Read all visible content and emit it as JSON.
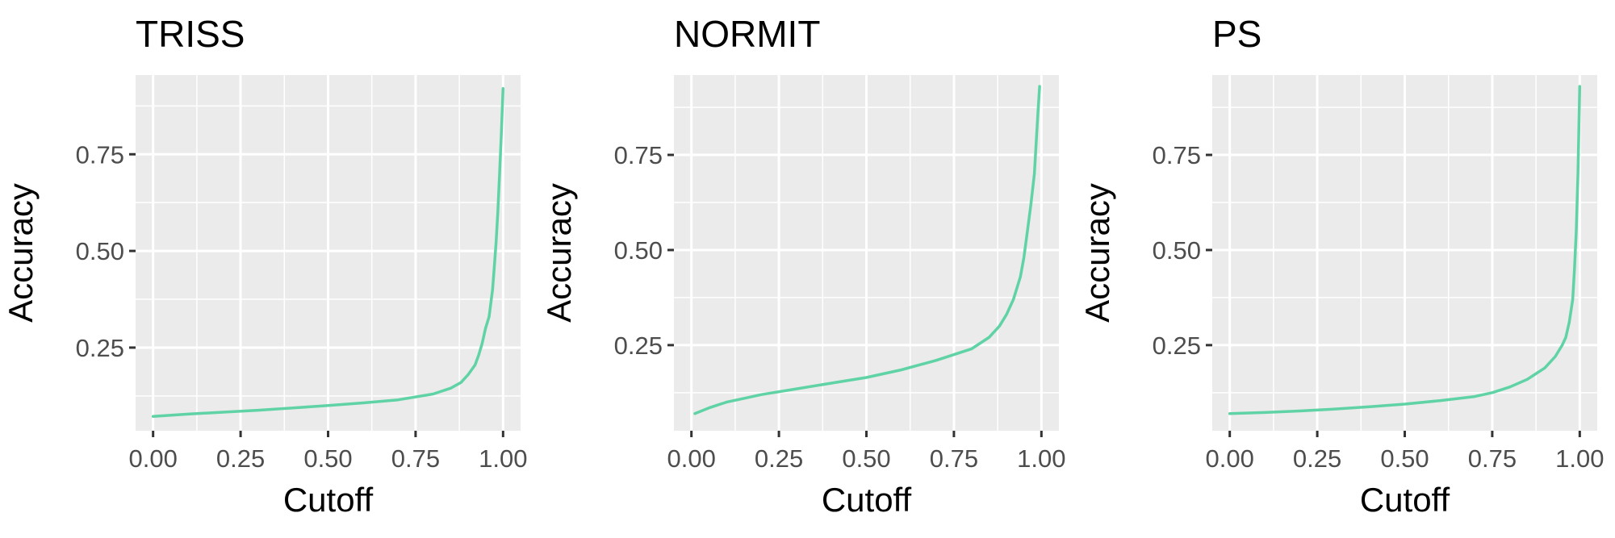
{
  "chart_data": [
    {
      "type": "line",
      "title": "TRISS",
      "xlabel": "Cutoff",
      "ylabel": "Accuracy",
      "xlim": [
        -0.05,
        1.05
      ],
      "ylim": [
        0.035,
        0.955
      ],
      "x_ticks": [
        "0.00",
        "0.25",
        "0.50",
        "0.75",
        "1.00"
      ],
      "y_ticks": [
        "0.25",
        "0.50",
        "0.75"
      ],
      "grid": true,
      "series": [
        {
          "color": "#5fd3a5",
          "x": [
            0.0,
            0.1,
            0.2,
            0.3,
            0.4,
            0.5,
            0.6,
            0.7,
            0.8,
            0.85,
            0.88,
            0.9,
            0.92,
            0.93,
            0.94,
            0.95,
            0.96,
            0.97,
            0.975,
            0.98,
            0.985,
            0.99,
            0.995,
            1.0
          ],
          "y": [
            0.072,
            0.078,
            0.083,
            0.088,
            0.094,
            0.1,
            0.107,
            0.115,
            0.13,
            0.145,
            0.16,
            0.18,
            0.205,
            0.23,
            0.26,
            0.3,
            0.33,
            0.4,
            0.46,
            0.52,
            0.6,
            0.7,
            0.8,
            0.92
          ]
        }
      ]
    },
    {
      "type": "line",
      "title": "NORMIT",
      "xlabel": "Cutoff",
      "ylabel": "Accuracy",
      "xlim": [
        -0.05,
        1.05
      ],
      "ylim": [
        0.025,
        0.96
      ],
      "x_ticks": [
        "0.00",
        "0.25",
        "0.50",
        "0.75",
        "1.00"
      ],
      "y_ticks": [
        "0.25",
        "0.50",
        "0.75"
      ],
      "grid": true,
      "series": [
        {
          "color": "#5fd3a5",
          "x": [
            0.01,
            0.05,
            0.1,
            0.15,
            0.2,
            0.3,
            0.4,
            0.5,
            0.6,
            0.7,
            0.8,
            0.85,
            0.88,
            0.9,
            0.92,
            0.94,
            0.95,
            0.96,
            0.97,
            0.98,
            0.985,
            0.99,
            0.995
          ],
          "y": [
            0.07,
            0.085,
            0.1,
            0.11,
            0.12,
            0.135,
            0.15,
            0.165,
            0.185,
            0.21,
            0.24,
            0.27,
            0.3,
            0.33,
            0.37,
            0.43,
            0.48,
            0.55,
            0.62,
            0.7,
            0.78,
            0.86,
            0.93
          ]
        }
      ]
    },
    {
      "type": "line",
      "title": "PS",
      "xlabel": "Cutoff",
      "ylabel": "Accuracy",
      "xlim": [
        -0.05,
        1.05
      ],
      "ylim": [
        0.025,
        0.96
      ],
      "x_ticks": [
        "0.00",
        "0.25",
        "0.50",
        "0.75",
        "1.00"
      ],
      "y_ticks": [
        "0.25",
        "0.50",
        "0.75"
      ],
      "grid": true,
      "series": [
        {
          "color": "#5fd3a5",
          "x": [
            0.0,
            0.1,
            0.2,
            0.3,
            0.4,
            0.5,
            0.6,
            0.7,
            0.75,
            0.8,
            0.85,
            0.9,
            0.93,
            0.95,
            0.96,
            0.97,
            0.98,
            0.985,
            0.99,
            0.995,
            1.0
          ],
          "y": [
            0.07,
            0.073,
            0.077,
            0.082,
            0.088,
            0.095,
            0.104,
            0.115,
            0.125,
            0.14,
            0.16,
            0.19,
            0.22,
            0.25,
            0.27,
            0.31,
            0.37,
            0.45,
            0.55,
            0.7,
            0.93
          ]
        }
      ]
    }
  ]
}
